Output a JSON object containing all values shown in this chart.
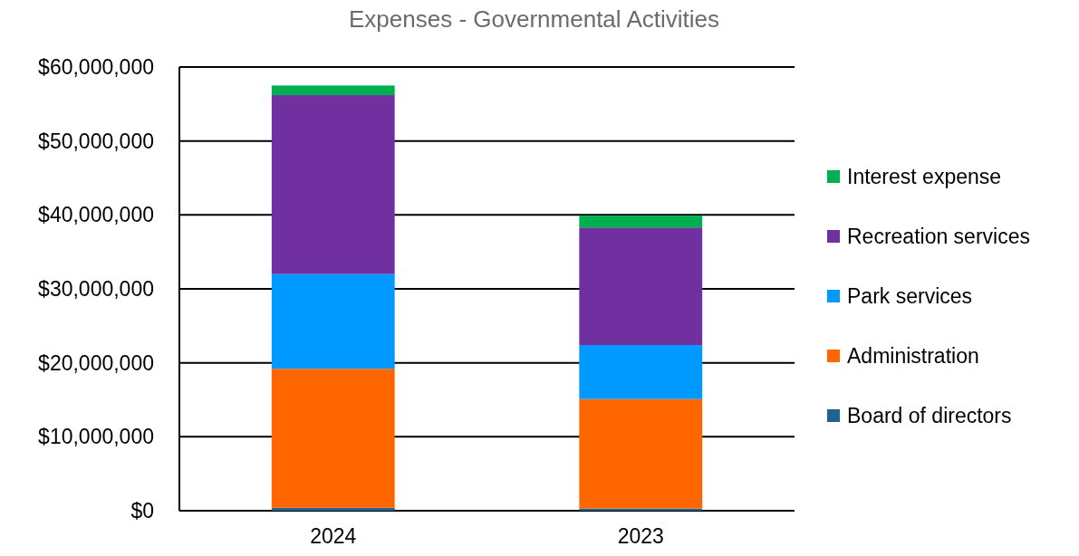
{
  "chart_data": {
    "type": "bar",
    "title": "Expenses - Governmental Activities",
    "categories": [
      "2024",
      "2023"
    ],
    "stacked": true,
    "series": [
      {
        "name": "Board of directors",
        "color": "#1f6391",
        "values": [
          400000,
          300000
        ]
      },
      {
        "name": "Administration",
        "color": "#ff6600",
        "values": [
          18800000,
          14800000
        ]
      },
      {
        "name": "Park services",
        "color": "#0099ff",
        "values": [
          12800000,
          7300000
        ]
      },
      {
        "name": "Recreation services",
        "color": "#7030a0",
        "values": [
          24200000,
          15900000
        ]
      },
      {
        "name": "Interest expense",
        "color": "#00b050",
        "values": [
          1300000,
          1600000
        ]
      }
    ],
    "ylim": [
      0,
      60000000
    ],
    "yticks": [
      {
        "value": 0,
        "label": "$0"
      },
      {
        "value": 10000000,
        "label": "$10,000,000"
      },
      {
        "value": 20000000,
        "label": "$20,000,000"
      },
      {
        "value": 30000000,
        "label": "$30,000,000"
      },
      {
        "value": 40000000,
        "label": "$40,000,000"
      },
      {
        "value": 50000000,
        "label": "$50,000,000"
      },
      {
        "value": 60000000,
        "label": "$60,000,000"
      }
    ],
    "grid": "y",
    "legend": "right"
  }
}
